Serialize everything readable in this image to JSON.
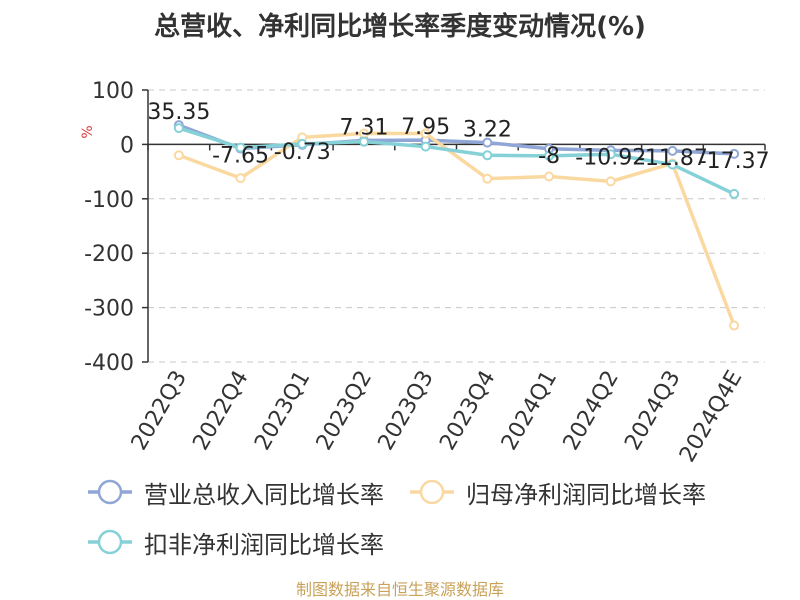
{
  "title": "总营收、净利同比增长率季度变动情况(%)",
  "source": "制图数据来自恒生聚源数据库",
  "chart_data": {
    "type": "line",
    "ylabel": "%",
    "ylim": [
      -400,
      100
    ],
    "yticks": [
      100,
      0,
      -100,
      -200,
      -300,
      -400
    ],
    "categories": [
      "2022Q3",
      "2022Q4",
      "2023Q1",
      "2023Q2",
      "2023Q3",
      "2023Q4",
      "2024Q1",
      "2024Q2",
      "2024Q3",
      "2024Q4E"
    ],
    "grid": true,
    "legend_position": "bottom",
    "series": [
      {
        "name": "营业总收入同比增长率",
        "color": "#8fa6d6",
        "values": [
          35.35,
          -7.65,
          -0.73,
          7.31,
          7.95,
          3.22,
          -8,
          -10.92,
          -11.87,
          -17.37
        ],
        "labels": [
          "35.35",
          "-7.65",
          "-0.73",
          "7.31",
          "7.95",
          "3.22",
          "-8",
          "-10.92",
          "-11.87",
          "-17.37"
        ]
      },
      {
        "name": "归母净利润同比增长率",
        "color": "#fad9a0",
        "values": [
          -20,
          -62,
          13,
          20,
          20,
          -63,
          -59,
          -68,
          -35,
          -333
        ]
      },
      {
        "name": "扣非净利润同比增长率",
        "color": "#86d1d8",
        "values": [
          30,
          -6,
          1,
          5,
          -4,
          -20,
          -21,
          -18,
          -37,
          -91
        ]
      }
    ]
  }
}
